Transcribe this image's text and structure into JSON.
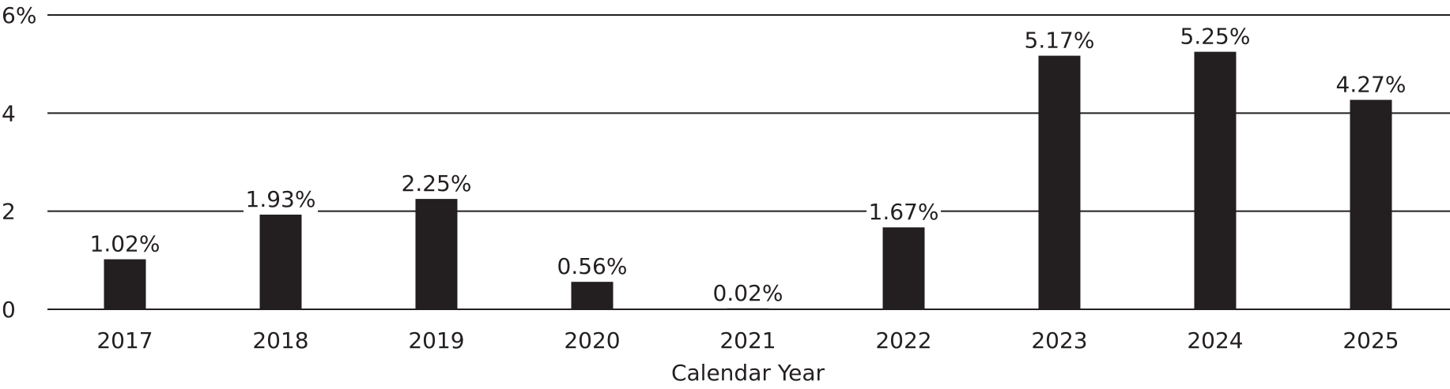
{
  "chart_data": {
    "type": "bar",
    "categories": [
      "2017",
      "2018",
      "2019",
      "2020",
      "2021",
      "2022",
      "2023",
      "2024",
      "2025"
    ],
    "values": [
      1.02,
      1.93,
      2.25,
      0.56,
      0.02,
      1.67,
      5.17,
      5.25,
      4.27
    ],
    "data_labels": [
      "1.02%",
      "1.93%",
      "2.25%",
      "0.56%",
      "0.02%",
      "1.67%",
      "5.17%",
      "5.25%",
      "4.27%"
    ],
    "y_ticks": [
      0,
      2,
      4,
      6
    ],
    "y_tick_labels": [
      "0",
      "2",
      "4",
      "6%"
    ],
    "xlabel": "Calendar Year",
    "ylabel": "",
    "ylim": [
      0,
      6
    ],
    "grid": true,
    "legend": "none",
    "bar_color": "#231f20"
  }
}
